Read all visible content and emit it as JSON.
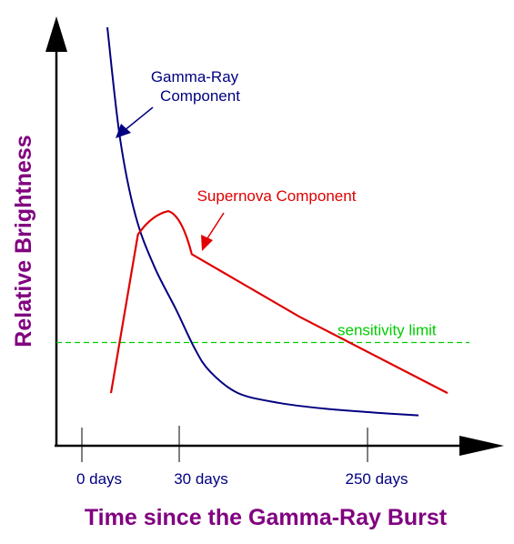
{
  "chart_data": {
    "type": "line",
    "title": "",
    "xlabel": "Time since the Gamma-Ray Burst",
    "ylabel": "Relative Brightness",
    "x_ticks": [
      "0 days",
      "30 days",
      "250 days"
    ],
    "grid": false,
    "legend": "none",
    "series": [
      {
        "name": "Gamma-Ray Component",
        "color": "#000080",
        "points": [
          [
            0.0,
            1.0
          ],
          [
            0.04,
            0.72
          ],
          [
            0.09,
            0.52
          ],
          [
            0.15,
            0.39
          ],
          [
            0.22,
            0.28
          ],
          [
            0.28,
            0.18
          ],
          [
            0.33,
            0.12
          ],
          [
            0.42,
            0.065
          ],
          [
            0.55,
            0.04
          ],
          [
            0.7,
            0.025
          ],
          [
            0.86,
            0.015
          ],
          [
            1.0,
            0.008
          ]
        ]
      },
      {
        "name": "Supernova Component",
        "color": "#e00000",
        "points": [
          [
            0.0,
            0.065
          ],
          [
            0.08,
            0.47
          ],
          [
            0.12,
            0.52
          ],
          [
            0.17,
            0.53
          ],
          [
            0.21,
            0.52
          ],
          [
            0.24,
            0.42
          ],
          [
            0.56,
            0.26
          ],
          [
            1.0,
            0.065
          ]
        ]
      }
    ],
    "reference_line": {
      "label": "sensitivity limit",
      "y": 0.25,
      "color": "#00cc00",
      "style": "dashed"
    },
    "annotations": [
      {
        "text_lines": [
          "Gamma-Ray",
          "Component"
        ],
        "color": "#000080"
      },
      {
        "text_lines": [
          "Supernova Component"
        ],
        "color": "#e00000"
      }
    ]
  }
}
